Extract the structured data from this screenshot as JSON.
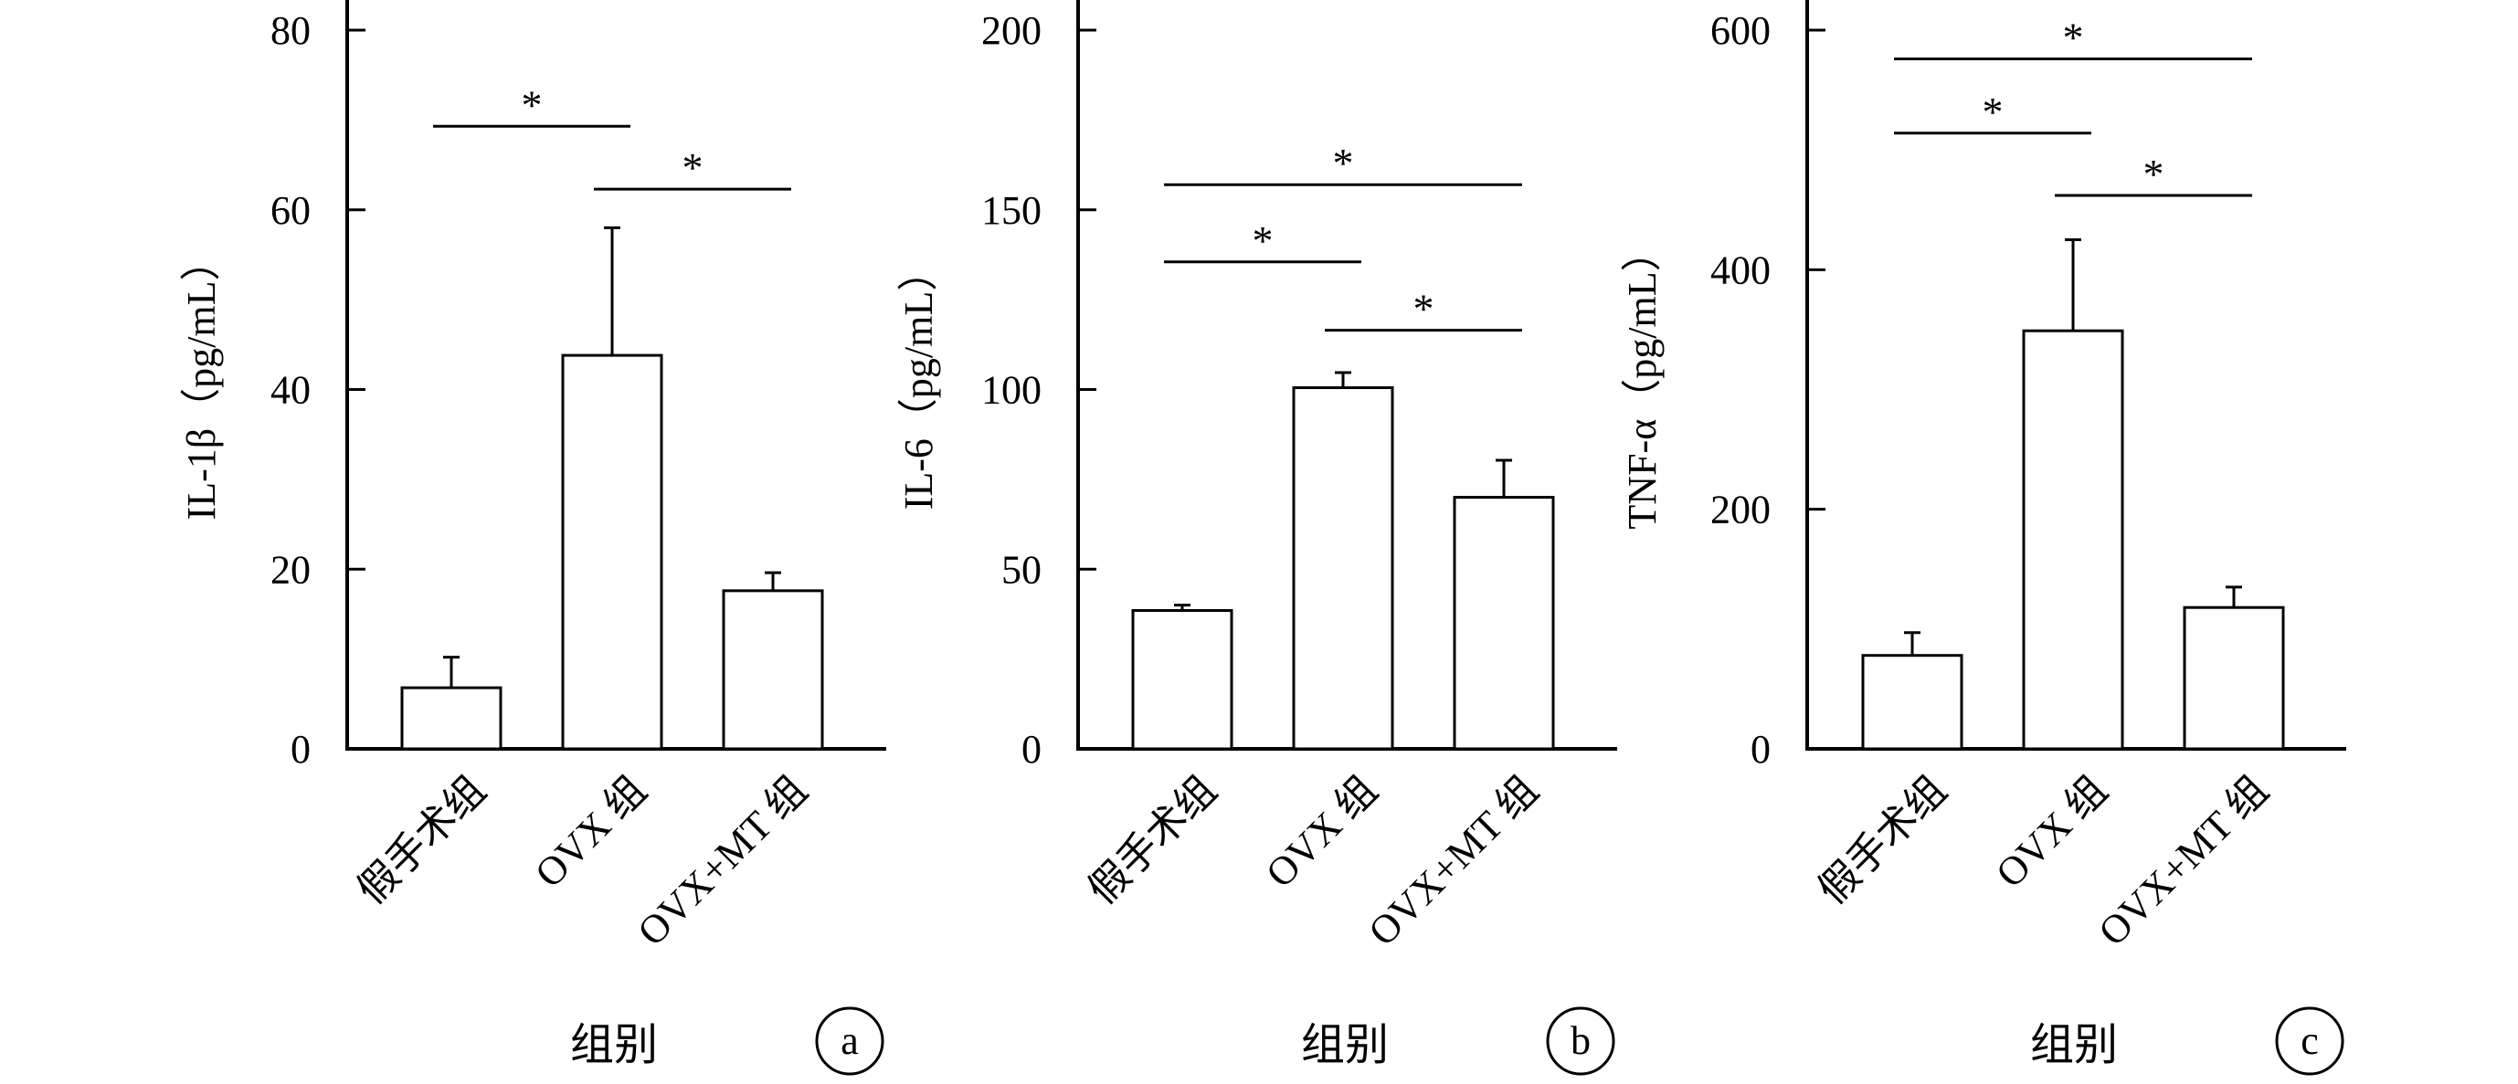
{
  "chart_data": [
    {
      "type": "bar",
      "panel_label": "a",
      "ylabel": "IL-1β（pg/mL）",
      "xlabel": "组别",
      "categories": [
        "假手术组",
        "OVX 组",
        "OVX+MT 组"
      ],
      "values": [
        6.8,
        43.8,
        17.6
      ],
      "errors": [
        3.4,
        14.2,
        2.0
      ],
      "ylim": [
        0,
        80
      ],
      "yticks": [
        0,
        20,
        40,
        60,
        80
      ],
      "significance": [
        {
          "from": 0,
          "to": 1,
          "y": 69.3,
          "label": "*"
        },
        {
          "from": 1,
          "to": 2,
          "y": 62.3,
          "label": "*"
        }
      ]
    },
    {
      "type": "bar",
      "panel_label": "b",
      "ylabel": "IL-6（pg/mL）",
      "xlabel": "组别",
      "categories": [
        "假手术组",
        "OVX 组",
        "OVX+MT 组"
      ],
      "values": [
        38.5,
        100.5,
        70.0
      ],
      "errors": [
        1.5,
        4.2,
        10.3
      ],
      "ylim": [
        0,
        200
      ],
      "yticks": [
        0,
        50,
        100,
        150,
        200
      ],
      "significance": [
        {
          "from": 0,
          "to": 2,
          "y": 157.0,
          "label": "*"
        },
        {
          "from": 0,
          "to": 1,
          "y": 135.5,
          "label": "*"
        },
        {
          "from": 1,
          "to": 2,
          "y": 116.5,
          "label": "*"
        }
      ]
    },
    {
      "type": "bar",
      "panel_label": "c",
      "ylabel": "TNF-α（pg/mL）",
      "xlabel": "组别",
      "categories": [
        "假手术组",
        "OVX 组",
        "OVX+MT 组"
      ],
      "values": [
        78,
        349,
        118
      ],
      "errors": [
        19,
        76,
        17
      ],
      "ylim": [
        0,
        600
      ],
      "yticks": [
        0,
        200,
        400,
        600
      ],
      "significance": [
        {
          "from": 0,
          "to": 2,
          "y": 576,
          "label": "*"
        },
        {
          "from": 0,
          "to": 1,
          "y": 514,
          "label": "*"
        },
        {
          "from": 1,
          "to": 2,
          "y": 462,
          "label": "*"
        }
      ]
    }
  ]
}
